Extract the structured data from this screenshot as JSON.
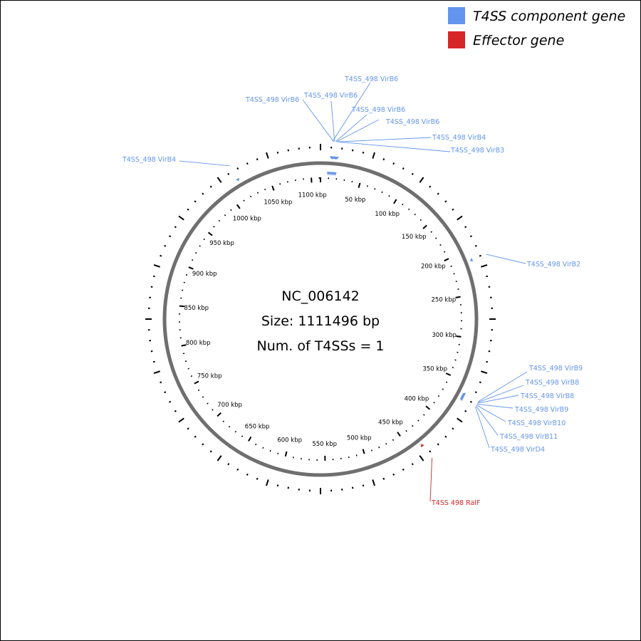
{
  "legend": {
    "items": [
      {
        "label": "T4SS component gene",
        "color": "#6495ED"
      },
      {
        "label": "Effector gene",
        "color": "#D62728"
      }
    ]
  },
  "genome": {
    "accession": "NC_006142",
    "size_text": "Size: 1111496 bp",
    "t4ss_count_text": "Num. of T4SSs = 1",
    "length_bp": 1111496
  },
  "kbp_labels": [
    "50 kbp",
    "100 kbp",
    "150 kbp",
    "200 kbp",
    "250 kbp",
    "300 kbp",
    "350 kbp",
    "400 kbp",
    "450 kbp",
    "500 kbp",
    "550 kbp",
    "600 kbp",
    "650 kbp",
    "700 kbp",
    "750 kbp",
    "800 kbp",
    "850 kbp",
    "900 kbp",
    "950 kbp",
    "1000 kbp",
    "1050 kbp",
    "1100 kbp"
  ],
  "features": [
    {
      "label": "T4SS_498 VirB6",
      "type": "component",
      "position_bp": 12000
    },
    {
      "label": "T4SS_498 VirB6",
      "type": "component",
      "position_bp": 13000
    },
    {
      "label": "T4SS_498 VirB6",
      "type": "component",
      "position_bp": 14000
    },
    {
      "label": "T4SS_498 VirB6",
      "type": "component",
      "position_bp": 15000
    },
    {
      "label": "T4SS_498 VirB6",
      "type": "component",
      "position_bp": 16000
    },
    {
      "label": "T4SS_498 VirB4",
      "type": "component",
      "position_bp": 17000
    },
    {
      "label": "T4SS_498 VirB3",
      "type": "component",
      "position_bp": 18000
    },
    {
      "label": "T4SS_498 VirB4",
      "type": "component",
      "position_bp": 1017000
    },
    {
      "label": "T4SS_498 VirB2",
      "type": "component",
      "position_bp": 212000
    },
    {
      "label": "T4SS_498 VirB9",
      "type": "component",
      "position_bp": 363000
    },
    {
      "label": "T4SS_498 VirB8",
      "type": "component",
      "position_bp": 364000
    },
    {
      "label": "T4SS_498 VirB8",
      "type": "component",
      "position_bp": 365000
    },
    {
      "label": "T4SS_498 VirB9",
      "type": "component",
      "position_bp": 366000
    },
    {
      "label": "T4SS_498 VirB10",
      "type": "component",
      "position_bp": 367000
    },
    {
      "label": "T4SS_498 VirB11",
      "type": "component",
      "position_bp": 368000
    },
    {
      "label": "T4SS_498 VirD4",
      "type": "component",
      "position_bp": 369000
    },
    {
      "label": "T4SS 498 RalF",
      "type": "effector",
      "position_bp": 436000
    }
  ]
}
